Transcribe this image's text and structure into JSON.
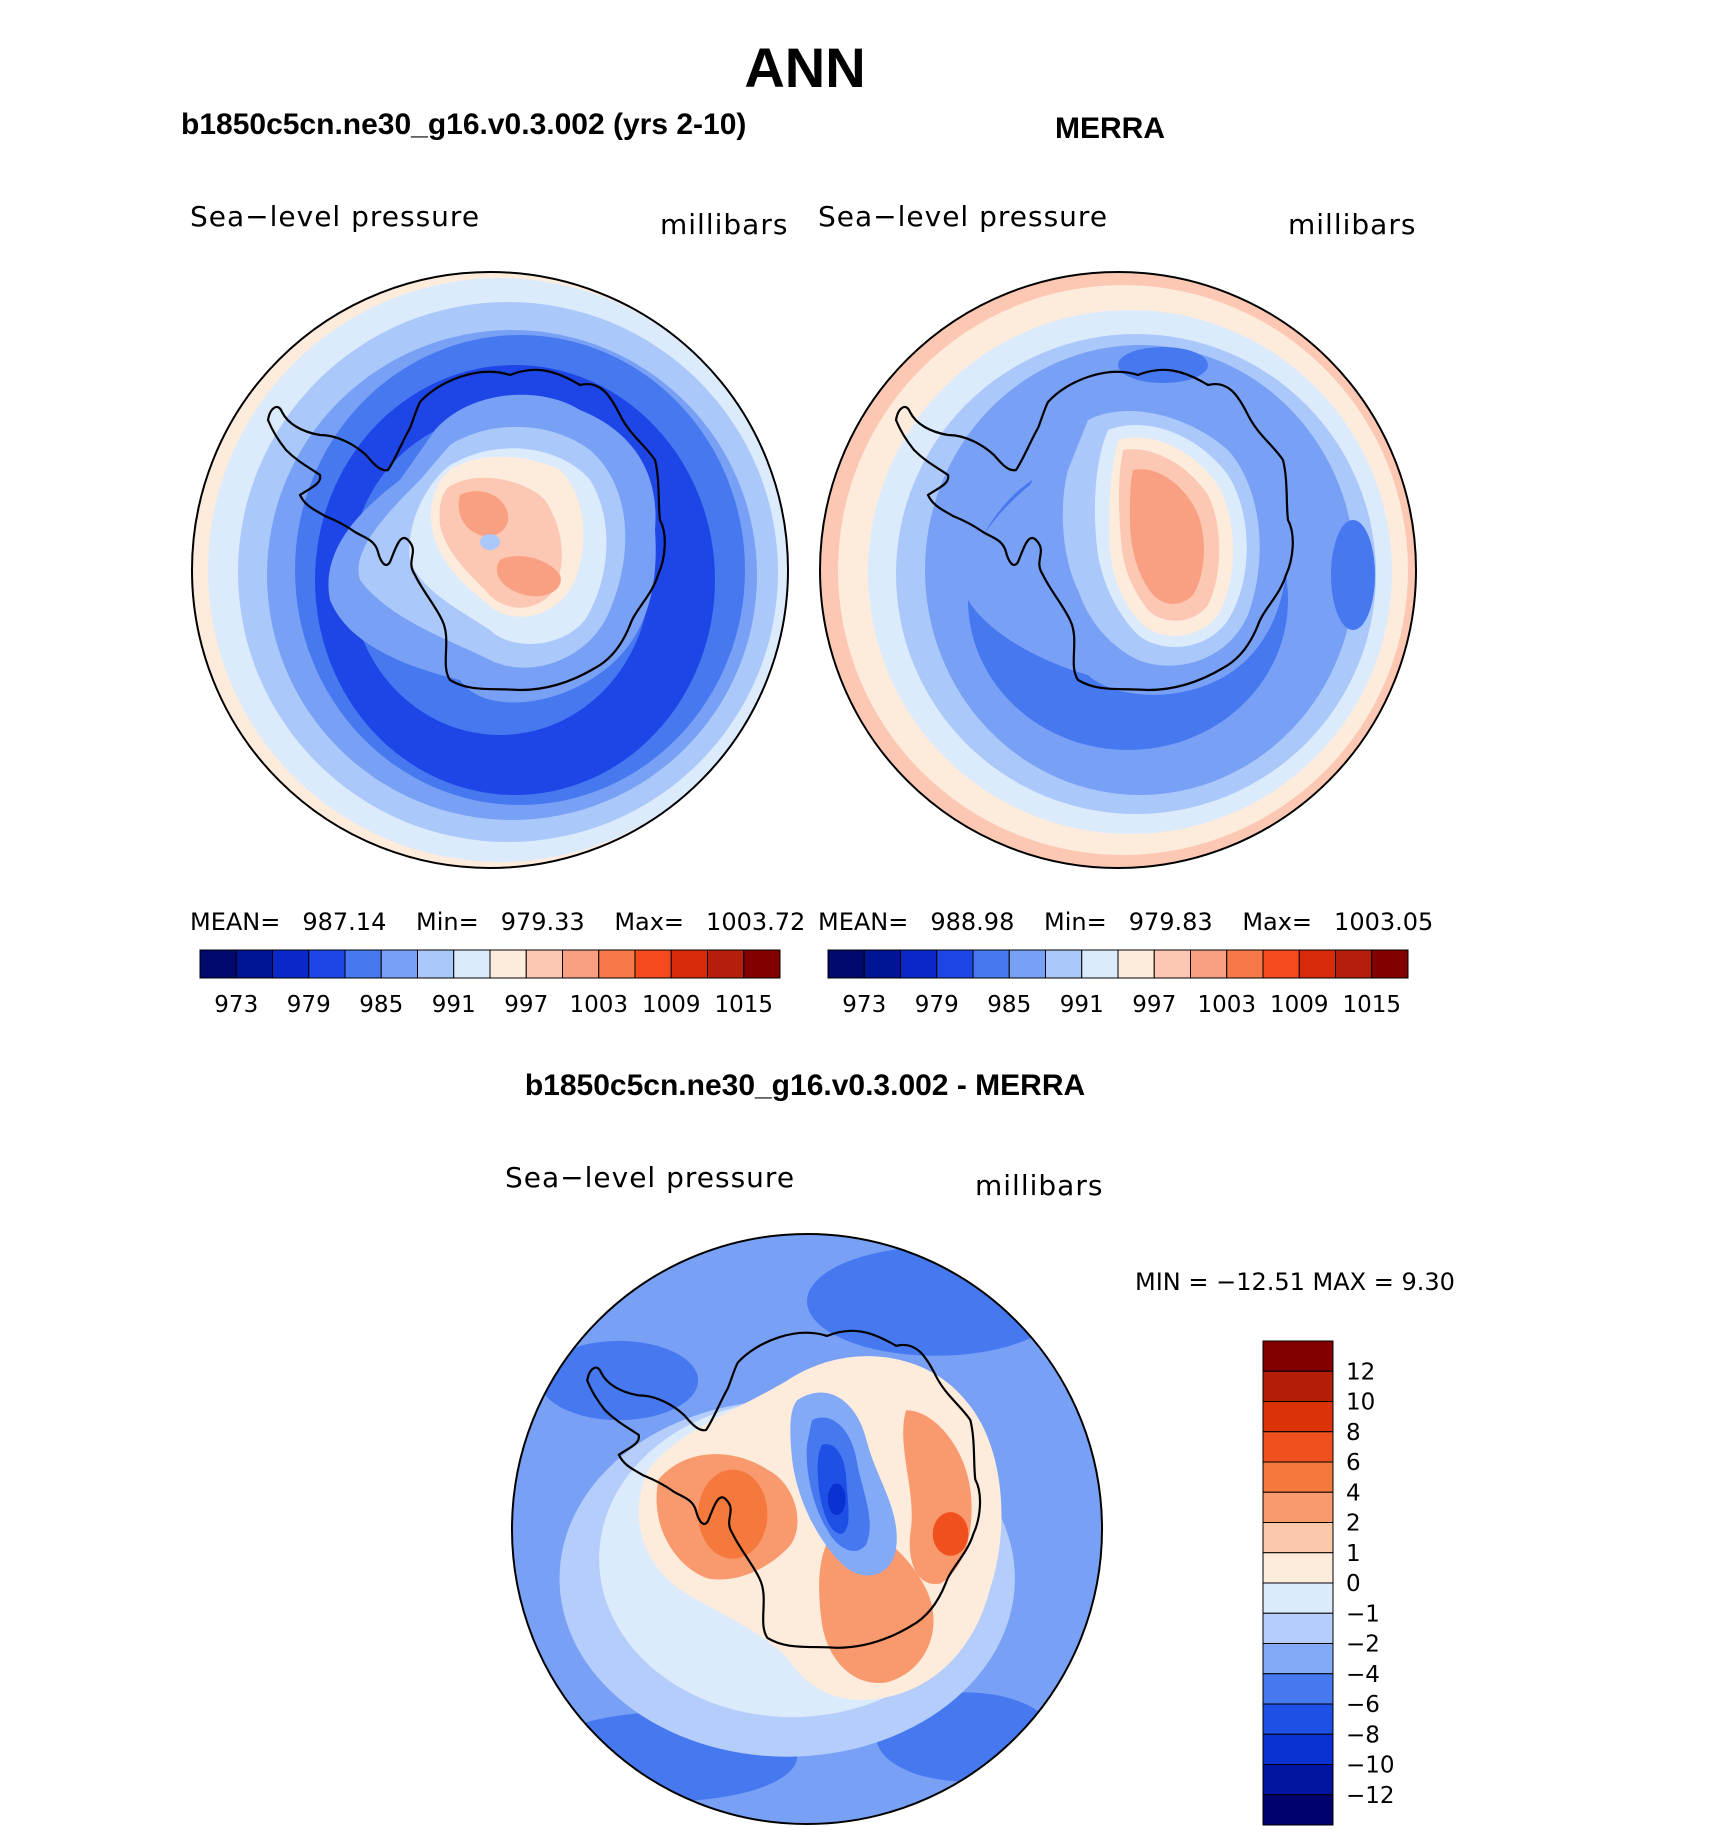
{
  "header": {
    "title": "ANN",
    "left_title": "b1850c5cn.ne30_g16.v0.3.002 (yrs 2-10)",
    "right_title": "MERRA",
    "diff_title": "b1850c5cn.ne30_g16.v0.3.002 - MERRA"
  },
  "panels": {
    "model": {
      "variable": "Sea−level pressure",
      "units": "millibars",
      "mean_label": "MEAN=",
      "mean": "987.14",
      "min_label": "Min=",
      "min": "979.33",
      "max_label": "Max=",
      "max": "1003.72"
    },
    "obs": {
      "variable": "Sea−level pressure",
      "units": "millibars",
      "mean_label": "MEAN=",
      "mean": "988.98",
      "min_label": "Min=",
      "min": "979.83",
      "max_label": "Max=",
      "max": "1003.05"
    },
    "diff": {
      "variable": "Sea−level pressure",
      "units": "millibars",
      "minmax": "MIN = −12.51  MAX =     9.30"
    }
  },
  "colorbars": {
    "absolute": {
      "colors": [
        "#000a6e",
        "#001496",
        "#0a28c8",
        "#1e46e6",
        "#4678f0",
        "#78a0f5",
        "#aac8fa",
        "#dcebfc",
        "#fdebdc",
        "#fcc8b4",
        "#faa082",
        "#f87848",
        "#f54a1e",
        "#d82a0a",
        "#b41e0a",
        "#820000"
      ],
      "labels": [
        "973",
        "979",
        "985",
        "991",
        "997",
        "1003",
        "1009",
        "1015"
      ]
    },
    "diff": {
      "colors": [
        "#00006e",
        "#0014a0",
        "#0a32d2",
        "#1e50e6",
        "#4678f0",
        "#82aaf7",
        "#b4cdfa",
        "#dcebfc",
        "#fdebdc",
        "#fcc8aa",
        "#f99a6e",
        "#f5783c",
        "#f0501e",
        "#dc3208",
        "#b41e08",
        "#820000"
      ],
      "labels": [
        "12",
        "10",
        "8",
        "6",
        "4",
        "2",
        "1",
        "0",
        "−1",
        "−2",
        "−4",
        "−6",
        "−8",
        "−10",
        "−12"
      ]
    }
  }
}
